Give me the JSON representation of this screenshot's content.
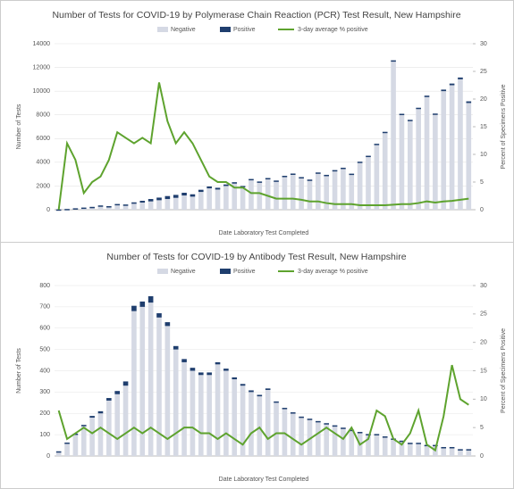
{
  "chart_data": [
    {
      "type": "bar",
      "title": "Number of Tests for COVID-19 by Polymerase Chain Reaction (PCR) Test Result, New Hampshire",
      "xlabel": "Date Laboratory Test Completed",
      "ylabel": "Number of Tests",
      "y2label": "Percent of Specimens Positive",
      "ylim": [
        0,
        14000
      ],
      "yticks": [
        0,
        2000,
        4000,
        6000,
        8000,
        10000,
        12000,
        14000
      ],
      "y2lim": [
        0,
        30
      ],
      "y2ticks": [
        0,
        5,
        10,
        15,
        20,
        25,
        30
      ],
      "legend": "top",
      "series": [
        {
          "name": "Negative",
          "color": "#d5d9e4",
          "values": [
            20,
            50,
            100,
            150,
            200,
            300,
            250,
            400,
            350,
            500,
            600,
            700,
            800,
            900,
            1000,
            1200,
            1100,
            1500,
            1800,
            1700,
            2000,
            2200,
            1900,
            2500,
            2300,
            2600,
            2400,
            2800,
            3000,
            2700,
            2500,
            3100,
            2900,
            3300,
            3500,
            3000,
            4000,
            4500,
            5500,
            6500,
            12500,
            8000,
            7500,
            8500,
            9500,
            8000,
            10000,
            10500,
            11000,
            9000
          ]
        },
        {
          "name": "Positive",
          "color": "#1f3e6e",
          "values": [
            5,
            10,
            20,
            30,
            40,
            60,
            50,
            80,
            90,
            120,
            150,
            200,
            220,
            250,
            250,
            230,
            200,
            180,
            160,
            150,
            130,
            120,
            100,
            90,
            80,
            70,
            60,
            60,
            50,
            50,
            40,
            40,
            40,
            40,
            40,
            40,
            50,
            50,
            60,
            70,
            100,
            90,
            80,
            100,
            120,
            110,
            130,
            140,
            150,
            140
          ]
        },
        {
          "name": "3-day average % positive",
          "color": "#5ea32e",
          "axis": "y2",
          "values": [
            0,
            12,
            9,
            3,
            5,
            6,
            9,
            14,
            13,
            12,
            13,
            12,
            23,
            16,
            12,
            14,
            12,
            9,
            6,
            5,
            5,
            4,
            4,
            3,
            3,
            2.5,
            2,
            2,
            2,
            1.8,
            1.5,
            1.5,
            1.2,
            1,
            1,
            1,
            0.8,
            0.8,
            0.8,
            0.8,
            0.9,
            1,
            1,
            1.2,
            1.5,
            1.3,
            1.5,
            1.6,
            1.8,
            2
          ]
        }
      ]
    },
    {
      "type": "bar",
      "title": "Number of Tests for COVID-19 by Antibody Test Result, New Hampshire",
      "xlabel": "Date Laboratory Test Completed",
      "ylabel": "Number of Tests",
      "y2label": "Percent of Specimens Positive",
      "ylim": [
        0,
        800
      ],
      "yticks": [
        0,
        100,
        200,
        300,
        400,
        500,
        600,
        700,
        800
      ],
      "y2lim": [
        0,
        30
      ],
      "y2ticks": [
        0,
        5,
        10,
        15,
        20,
        25,
        30
      ],
      "legend": "top",
      "series": [
        {
          "name": "Negative",
          "color": "#d5d9e4",
          "values": [
            20,
            60,
            100,
            140,
            180,
            200,
            260,
            290,
            330,
            680,
            700,
            720,
            650,
            610,
            500,
            440,
            400,
            380,
            380,
            430,
            400,
            360,
            330,
            300,
            280,
            310,
            250,
            220,
            200,
            180,
            170,
            160,
            150,
            140,
            130,
            120,
            110,
            100,
            100,
            90,
            80,
            70,
            60,
            60,
            50,
            50,
            40,
            40,
            30,
            30
          ]
        },
        {
          "name": "Positive",
          "color": "#1f3e6e",
          "values": [
            2,
            3,
            5,
            6,
            8,
            10,
            12,
            15,
            20,
            25,
            25,
            30,
            20,
            18,
            16,
            15,
            14,
            12,
            12,
            10,
            10,
            9,
            8,
            8,
            7,
            7,
            6,
            6,
            5,
            5,
            5,
            4,
            4,
            4,
            3,
            3,
            3,
            3,
            3,
            2,
            2,
            2,
            2,
            2,
            2,
            2,
            2,
            2,
            2,
            2
          ]
        },
        {
          "name": "3-day average % positive",
          "color": "#5ea32e",
          "axis": "y2",
          "values": [
            8,
            3,
            4,
            5,
            4,
            5,
            4,
            3,
            4,
            5,
            4,
            5,
            4,
            3,
            4,
            5,
            5,
            4,
            4,
            3,
            4,
            3,
            2,
            4,
            5,
            3,
            4,
            4,
            3,
            2,
            3,
            4,
            5,
            4,
            3,
            5,
            2,
            3,
            8,
            7,
            3,
            2,
            4,
            8,
            2,
            1,
            7,
            16,
            10,
            9
          ]
        }
      ]
    }
  ]
}
